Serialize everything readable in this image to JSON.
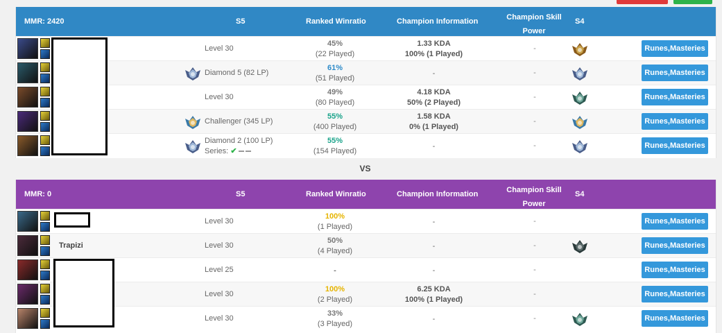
{
  "colors": {
    "team1_header": "#3088c5",
    "team2_header": "#8e44ad",
    "button": "#3498db",
    "winrate_blue": "#2e8bc9",
    "winrate_green": "#1aa38a",
    "winrate_gold": "#e6b400"
  },
  "headers": {
    "s5": "S5",
    "ranked_winratio": "Ranked Winratio",
    "champion_information": "Champion Information",
    "champion_skill_line1": "Champion Skill",
    "champion_skill_line2": "Power",
    "s4": "S4"
  },
  "team1": {
    "mmr": "MMR: 2420",
    "players": [
      {
        "name": "",
        "rank": "Level 30",
        "winrate": "45%",
        "played": "(22 Played)",
        "kda": "1.33 KDA",
        "champ_wr": "100% (1 Played)",
        "skill": "-",
        "s4_tier": "gold",
        "button": "Runes,Masteries",
        "champ_color": "#3a4a8a",
        "s5_tier": ""
      },
      {
        "name": "",
        "rank": "Diamond 5 (82 LP)",
        "winrate": "61%",
        "played": "(51 Played)",
        "kda": "",
        "champ_wr": "-",
        "skill": "-",
        "s4_tier": "diamond",
        "button": "Runes,Masteries",
        "champ_color": "#2a5a6a",
        "s5_tier": "diamond"
      },
      {
        "name": "",
        "rank": "Level 30",
        "winrate": "49%",
        "played": "(80 Played)",
        "kda": "4.18 KDA",
        "champ_wr": "50% (2 Played)",
        "skill": "-",
        "s4_tier": "platinum",
        "button": "Runes,Masteries",
        "champ_color": "#7a4a2a",
        "s5_tier": ""
      },
      {
        "name": "",
        "rank": "Challenger (345 LP)",
        "winrate": "55%",
        "played": "(400 Played)",
        "kda": "1.58 KDA",
        "champ_wr": "0% (1 Played)",
        "skill": "-",
        "s4_tier": "challenger",
        "button": "Runes,Masteries",
        "champ_color": "#4a2a7a",
        "s5_tier": "challenger"
      },
      {
        "name": "",
        "rank": "Diamond 2 (100 LP)",
        "series_label": "Series:",
        "winrate": "55%",
        "played": "(154 Played)",
        "kda": "",
        "champ_wr": "-",
        "skill": "-",
        "s4_tier": "diamond",
        "button": "Runes,Masteries",
        "champ_color": "#8a5a2a",
        "s5_tier": "diamond"
      }
    ]
  },
  "vs_label": "VS",
  "team2": {
    "mmr": "MMR: 0",
    "players": [
      {
        "name": "",
        "rank": "Level 30",
        "winrate": "100%",
        "played": "(1 Played)",
        "kda": "",
        "champ_wr": "-",
        "skill": "-",
        "s4_tier": "",
        "button": "Runes,Masteries",
        "champ_color": "#3a6a8a"
      },
      {
        "name": "Trapizi",
        "rank": "Level 30",
        "winrate": "50%",
        "played": "(4 Played)",
        "kda": "",
        "champ_wr": "-",
        "skill": "-",
        "s4_tier": "platinum-dark",
        "button": "Runes,Masteries",
        "champ_color": "#4a2a3a"
      },
      {
        "name": "",
        "rank": "Level 25",
        "winrate": "-",
        "played": "",
        "kda": "",
        "champ_wr": "-",
        "skill": "-",
        "s4_tier": "",
        "button": "Runes,Masteries",
        "champ_color": "#8a2a2a"
      },
      {
        "name": "",
        "rank": "Level 30",
        "winrate": "100%",
        "played": "(2 Played)",
        "kda": "6.25 KDA",
        "champ_wr": "100% (1 Played)",
        "skill": "-",
        "s4_tier": "",
        "button": "Runes,Masteries",
        "champ_color": "#6a2a6a"
      },
      {
        "name": "",
        "rank": "Level 30",
        "winrate": "33%",
        "played": "(3 Played)",
        "kda": "",
        "champ_wr": "-",
        "skill": "-",
        "s4_tier": "platinum",
        "button": "Runes,Masteries",
        "champ_color": "#b8846a"
      }
    ]
  }
}
